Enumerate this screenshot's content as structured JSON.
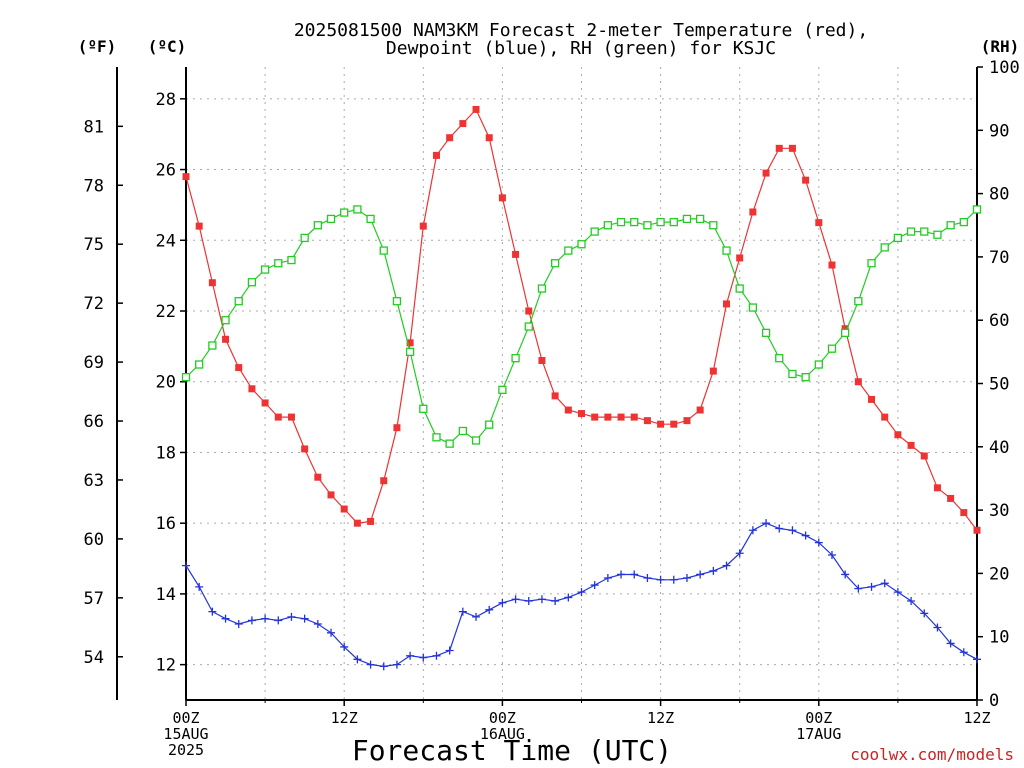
{
  "chart_data": {
    "type": "line",
    "title_lines": [
      "2025081500 NAM3KM Forecast 2-meter Temperature (red),",
      "Dewpoint (blue), RH (green) for KSJC"
    ],
    "xlabel": "Forecast Time (UTC)",
    "credit": "coolwx.com/models",
    "units": {
      "fahrenheit": "(ºF)",
      "celsius": "(ºC)",
      "rh": "(RH)"
    },
    "x_hours_range": [
      0,
      60
    ],
    "x_ticks": [
      {
        "hour": 0,
        "lines": [
          "00Z",
          "15AUG",
          "2025"
        ]
      },
      {
        "hour": 12,
        "lines": [
          "12Z"
        ]
      },
      {
        "hour": 24,
        "lines": [
          "00Z",
          "16AUG"
        ]
      },
      {
        "hour": 36,
        "lines": [
          "12Z"
        ]
      },
      {
        "hour": 48,
        "lines": [
          "00Z",
          "17AUG"
        ]
      },
      {
        "hour": 60,
        "lines": [
          "12Z"
        ]
      }
    ],
    "x_minor_grid_hours": [
      6,
      18,
      30,
      42,
      54
    ],
    "ylim_celsius": [
      11.0,
      28.9
    ],
    "y_ticks_celsius": [
      "12",
      "14",
      "16",
      "18",
      "20",
      "22",
      "24",
      "26",
      "28"
    ],
    "y_ticks_fahrenheit": [
      "54",
      "57",
      "60",
      "63",
      "66",
      "69",
      "72",
      "75",
      "78",
      "81"
    ],
    "ylim_rh": [
      0,
      100
    ],
    "y_ticks_rh": [
      "0",
      "10",
      "20",
      "30",
      "40",
      "50",
      "60",
      "70",
      "80",
      "90",
      "100"
    ],
    "grid": true,
    "series": [
      {
        "name": "Temperature",
        "axis": "celsius",
        "color": "#ee3333",
        "marker": "filled-square",
        "x": [
          0,
          1,
          2,
          3,
          4,
          5,
          6,
          7,
          8,
          9,
          10,
          11,
          12,
          13,
          14,
          15,
          16,
          17,
          18,
          19,
          20,
          21,
          22,
          23,
          24,
          25,
          26,
          27,
          28,
          29,
          30,
          31,
          32,
          33,
          34,
          35,
          36,
          37,
          38,
          39,
          40,
          41,
          42,
          43,
          44,
          45,
          46,
          47,
          48,
          49,
          50,
          51,
          52,
          53,
          54,
          55,
          56,
          57,
          58,
          59,
          60
        ],
        "values": [
          25.8,
          24.4,
          22.8,
          21.2,
          20.4,
          19.8,
          19.4,
          19.0,
          19.0,
          18.1,
          17.3,
          16.8,
          16.4,
          16.0,
          16.05,
          17.2,
          18.7,
          21.1,
          24.4,
          26.4,
          26.9,
          27.3,
          27.7,
          26.9,
          25.2,
          23.6,
          22.0,
          20.6,
          19.6,
          19.2,
          19.1,
          19.0,
          19.0,
          19.0,
          19.0,
          18.9,
          18.8,
          18.8,
          18.9,
          19.2,
          20.3,
          22.2,
          23.5,
          24.8,
          25.9,
          26.6,
          26.6,
          25.7,
          24.5,
          23.3,
          21.5,
          20.0,
          19.5,
          19.0,
          18.5,
          18.2,
          17.9,
          17.0,
          16.7,
          16.3,
          15.8
        ]
      },
      {
        "name": "Dewpoint",
        "axis": "celsius",
        "color": "#2233dd",
        "marker": "plus",
        "x": [
          0,
          1,
          2,
          3,
          4,
          5,
          6,
          7,
          8,
          9,
          10,
          11,
          12,
          13,
          14,
          15,
          16,
          17,
          18,
          19,
          20,
          21,
          22,
          23,
          24,
          25,
          26,
          27,
          28,
          29,
          30,
          31,
          32,
          33,
          34,
          35,
          36,
          37,
          38,
          39,
          40,
          41,
          42,
          43,
          44,
          45,
          46,
          47,
          48,
          49,
          50,
          51,
          52,
          53,
          54,
          55,
          56,
          57,
          58,
          59,
          60
        ],
        "values": [
          14.8,
          14.2,
          13.5,
          13.3,
          13.15,
          13.25,
          13.3,
          13.25,
          13.35,
          13.3,
          13.15,
          12.9,
          12.5,
          12.15,
          12.0,
          11.95,
          12.0,
          12.25,
          12.2,
          12.25,
          12.4,
          13.5,
          13.35,
          13.55,
          13.75,
          13.85,
          13.8,
          13.85,
          13.8,
          13.9,
          14.05,
          14.25,
          14.45,
          14.55,
          14.55,
          14.45,
          14.4,
          14.4,
          14.45,
          14.55,
          14.65,
          14.8,
          15.15,
          15.8,
          16.0,
          15.85,
          15.8,
          15.65,
          15.45,
          15.1,
          14.55,
          14.15,
          14.2,
          14.3,
          14.05,
          13.8,
          13.45,
          13.05,
          12.6,
          12.35,
          12.15
        ]
      },
      {
        "name": "RH",
        "axis": "rh",
        "color": "#22cc22",
        "marker": "open-square",
        "x": [
          0,
          1,
          2,
          3,
          4,
          5,
          6,
          7,
          8,
          9,
          10,
          11,
          12,
          13,
          14,
          15,
          16,
          17,
          18,
          19,
          20,
          21,
          22,
          23,
          24,
          25,
          26,
          27,
          28,
          29,
          30,
          31,
          32,
          33,
          34,
          35,
          36,
          37,
          38,
          39,
          40,
          41,
          42,
          43,
          44,
          45,
          46,
          47,
          48,
          49,
          50,
          51,
          52,
          53,
          54,
          55,
          56,
          57,
          58,
          59,
          60
        ],
        "values": [
          51,
          53,
          56,
          60,
          63,
          66,
          68,
          69,
          69.5,
          73,
          75,
          76,
          77,
          77.5,
          76,
          71,
          63,
          55,
          46,
          41.5,
          40.5,
          42.5,
          41,
          43.5,
          49,
          54,
          59,
          65,
          69,
          71,
          72,
          74,
          75,
          75.5,
          75.5,
          75,
          75.5,
          75.5,
          76,
          76,
          75,
          71,
          65,
          62,
          58,
          54,
          51.5,
          51,
          53,
          55.5,
          58,
          63,
          69,
          71.5,
          73,
          74,
          74,
          73.5,
          75,
          75.5,
          77.5
        ]
      }
    ]
  }
}
